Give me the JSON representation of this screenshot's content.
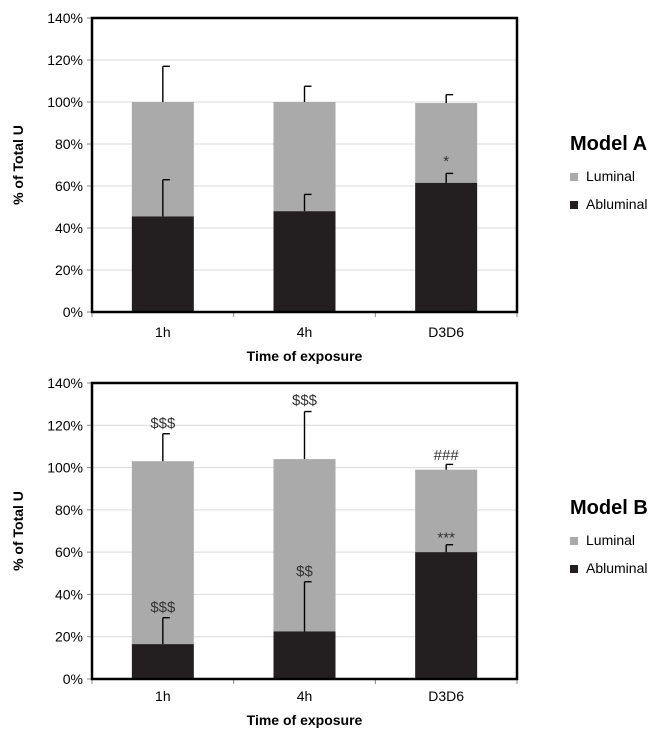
{
  "colors": {
    "luminal": "#aaaaaa",
    "abluminal": "#231f20",
    "axis": "#000000",
    "grid": "#d9d9d9",
    "annotation": "#333333"
  },
  "chart_data": [
    {
      "type": "bar",
      "stacked": true,
      "title": "Model A",
      "xlabel": "Time of exposure",
      "ylabel": "% of Total U",
      "ylim": [
        0,
        140
      ],
      "yticks": [
        "0%",
        "20%",
        "40%",
        "60%",
        "80%",
        "100%",
        "120%",
        "140%"
      ],
      "grid": true,
      "legend_position": "right",
      "categories": [
        "1h",
        "4h",
        "D3D6"
      ],
      "series": [
        {
          "name": "Abluminal",
          "values": [
            45.5,
            48,
            61.5
          ],
          "error_top": [
            63,
            56,
            66
          ]
        },
        {
          "name": "Luminal",
          "values": [
            54.5,
            52,
            38
          ],
          "error_top": [
            117,
            107.5,
            103.5
          ]
        }
      ],
      "annotations": [
        {
          "category": "D3D6",
          "y": 72,
          "text": "*"
        }
      ]
    },
    {
      "type": "bar",
      "stacked": true,
      "title": "Model B",
      "xlabel": "Time of exposure",
      "ylabel": "% of Total U",
      "ylim": [
        0,
        140
      ],
      "yticks": [
        "0%",
        "20%",
        "40%",
        "60%",
        "80%",
        "100%",
        "120%",
        "140%"
      ],
      "grid": true,
      "legend_position": "right",
      "categories": [
        "1h",
        "4h",
        "D3D6"
      ],
      "series": [
        {
          "name": "Abluminal",
          "values": [
            16.5,
            22.5,
            60
          ],
          "error_top": [
            29,
            46,
            63.5
          ]
        },
        {
          "name": "Luminal",
          "values": [
            86.5,
            81.5,
            39
          ],
          "error_top": [
            116,
            126.5,
            101.5
          ]
        }
      ],
      "annotations": [
        {
          "category": "1h",
          "y": 121,
          "text": "$$$"
        },
        {
          "category": "1h",
          "y": 34,
          "text": "$$$"
        },
        {
          "category": "4h",
          "y": 132,
          "text": "$$$"
        },
        {
          "category": "4h",
          "y": 51,
          "text": "$$"
        },
        {
          "category": "D3D6",
          "y": 106,
          "text": "###"
        },
        {
          "category": "D3D6",
          "y": 67,
          "text": "***"
        }
      ]
    }
  ]
}
